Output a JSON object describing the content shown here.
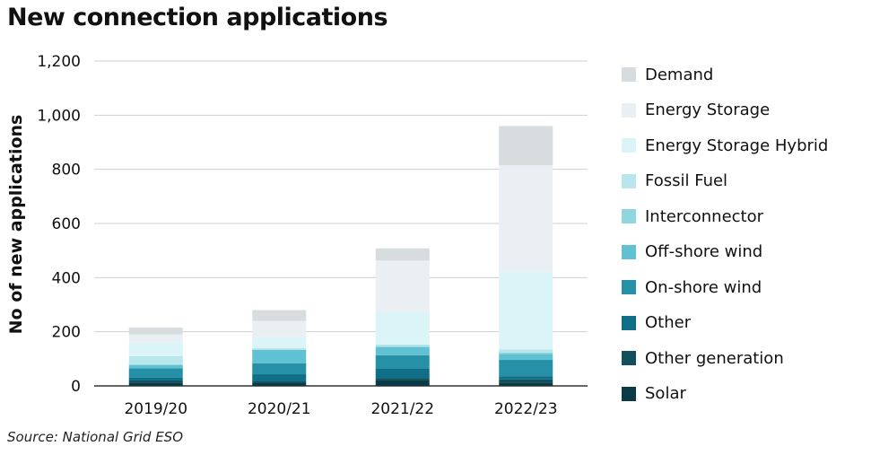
{
  "title": "New connection applications",
  "source": "Source: National Grid ESO",
  "chart_data": {
    "type": "bar",
    "stacked": true,
    "title": "New connection applications",
    "ylabel": "No of new applications",
    "xlabel": "",
    "ylim": [
      0,
      1200
    ],
    "yticks": [
      "0",
      "200",
      "400",
      "600",
      "800",
      "1,000",
      "1,200"
    ],
    "ytick_values": [
      0,
      200,
      400,
      600,
      800,
      1000,
      1200
    ],
    "grid": true,
    "legend_position": "right",
    "categories": [
      "2019/20",
      "2020/21",
      "2021/22",
      "2022/23"
    ],
    "series": [
      {
        "name": "Solar",
        "color": "#0b3a47",
        "values": [
          12,
          10,
          20,
          12
        ]
      },
      {
        "name": "Other generation",
        "color": "#13505e",
        "values": [
          8,
          8,
          8,
          12
        ]
      },
      {
        "name": "Other",
        "color": "#0f6f86",
        "values": [
          10,
          25,
          35,
          12
        ]
      },
      {
        "name": "On-shore wind",
        "color": "#2690a6",
        "values": [
          35,
          40,
          50,
          60
        ]
      },
      {
        "name": "Off-shore wind",
        "color": "#5fc1d1",
        "values": [
          12,
          50,
          30,
          22
        ]
      },
      {
        "name": "Interconnector",
        "color": "#90d6df",
        "values": [
          3,
          2,
          5,
          5
        ]
      },
      {
        "name": "Fossil Fuel",
        "color": "#b8e6ec",
        "values": [
          30,
          5,
          5,
          12
        ]
      },
      {
        "name": "Energy Storage Hybrid",
        "color": "#dbf4f8",
        "values": [
          50,
          40,
          120,
          285
        ]
      },
      {
        "name": "Energy Storage",
        "color": "#e9eff2",
        "values": [
          30,
          60,
          190,
          395
        ]
      },
      {
        "name": "Demand",
        "color": "#d7dddf",
        "values": [
          25,
          40,
          45,
          145
        ]
      }
    ]
  }
}
